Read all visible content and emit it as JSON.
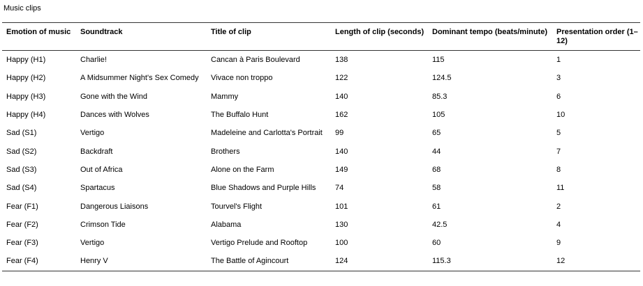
{
  "caption": "Music clips",
  "headers": {
    "emotion": "Emotion of music",
    "soundtrack": "Soundtrack",
    "title": "Title of clip",
    "length": "Length of clip (seconds)",
    "tempo": "Dominant tempo (beats/minute)",
    "order": "Presentation order (1–12)"
  },
  "rows": [
    {
      "emotion": "Happy (H1)",
      "soundtrack": "Charlie!",
      "title": "Cancan à Paris Boulevard",
      "length": "138",
      "tempo": "115",
      "order": "1"
    },
    {
      "emotion": "Happy (H2)",
      "soundtrack": "A Midsummer Night's Sex Comedy",
      "title": "Vivace non troppo",
      "length": "122",
      "tempo": "124.5",
      "order": "3"
    },
    {
      "emotion": "Happy (H3)",
      "soundtrack": "Gone with the Wind",
      "title": "Mammy",
      "length": "140",
      "tempo": "85.3",
      "order": "6"
    },
    {
      "emotion": "Happy (H4)",
      "soundtrack": "Dances with Wolves",
      "title": "The Buffalo Hunt",
      "length": "162",
      "tempo": "105",
      "order": "10"
    },
    {
      "emotion": "Sad (S1)",
      "soundtrack": "Vertigo",
      "title": "Madeleine and Carlotta's Portrait",
      "length": "99",
      "tempo": "65",
      "order": "5"
    },
    {
      "emotion": "Sad (S2)",
      "soundtrack": "Backdraft",
      "title": "Brothers",
      "length": "140",
      "tempo": "44",
      "order": "7"
    },
    {
      "emotion": "Sad (S3)",
      "soundtrack": "Out of Africa",
      "title": "Alone on the Farm",
      "length": "149",
      "tempo": "68",
      "order": "8"
    },
    {
      "emotion": "Sad (S4)",
      "soundtrack": "Spartacus",
      "title": "Blue Shadows and Purple Hills",
      "length": "74",
      "tempo": "58",
      "order": "11"
    },
    {
      "emotion": "Fear (F1)",
      "soundtrack": "Dangerous Liaisons",
      "title": "Tourvel's Flight",
      "length": "101",
      "tempo": "61",
      "order": "2"
    },
    {
      "emotion": "Fear (F2)",
      "soundtrack": "Crimson Tide",
      "title": "Alabama",
      "length": "130",
      "tempo": "42.5",
      "order": "4"
    },
    {
      "emotion": "Fear (F3)",
      "soundtrack": "Vertigo",
      "title": "Vertigo Prelude and Rooftop",
      "length": "100",
      "tempo": "60",
      "order": "9"
    },
    {
      "emotion": "Fear (F4)",
      "soundtrack": "Henry V",
      "title": "The Battle of Agincourt",
      "length": "124",
      "tempo": "115.3",
      "order": "12"
    }
  ]
}
